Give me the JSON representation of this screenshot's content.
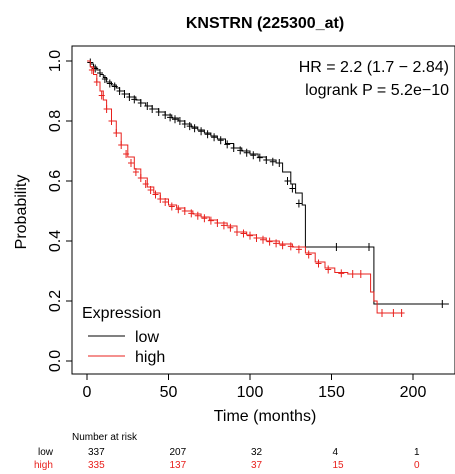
{
  "chart_data": {
    "type": "line",
    "subtype": "kaplan-meier",
    "title": "KNSTRN (225300_at)",
    "xlabel": "Time (months)",
    "ylabel": "Probability",
    "xlim": [
      0,
      222
    ],
    "ylim": [
      0,
      1
    ],
    "xticks": [
      0,
      50,
      100,
      150,
      200
    ],
    "yticks": [
      0.0,
      0.2,
      0.4,
      0.6,
      0.8,
      1.0
    ],
    "xtick_labels": [
      "0",
      "50",
      "100",
      "150",
      "200"
    ],
    "ytick_labels": [
      "0.0",
      "0.2",
      "0.4",
      "0.6",
      "0.8",
      "1.0"
    ],
    "annotations": [
      "HR = 2.2 (1.7 − 2.84)",
      "logrank P = 5.2e−10"
    ],
    "legend": {
      "title": "Expression",
      "position": "bottom-left",
      "entries": [
        {
          "label": "low",
          "color": "#000000"
        },
        {
          "label": "high",
          "color": "#e8201c"
        }
      ]
    },
    "series": [
      {
        "name": "low",
        "color": "#000000",
        "points": [
          [
            0,
            1.0
          ],
          [
            2,
            0.99
          ],
          [
            4,
            0.98
          ],
          [
            6,
            0.97
          ],
          [
            8,
            0.955
          ],
          [
            10,
            0.945
          ],
          [
            12,
            0.93
          ],
          [
            15,
            0.92
          ],
          [
            18,
            0.91
          ],
          [
            20,
            0.9
          ],
          [
            23,
            0.89
          ],
          [
            26,
            0.88
          ],
          [
            30,
            0.87
          ],
          [
            33,
            0.86
          ],
          [
            36,
            0.85
          ],
          [
            40,
            0.84
          ],
          [
            44,
            0.83
          ],
          [
            48,
            0.82
          ],
          [
            52,
            0.81
          ],
          [
            56,
            0.8
          ],
          [
            60,
            0.79
          ],
          [
            64,
            0.78
          ],
          [
            68,
            0.77
          ],
          [
            72,
            0.76
          ],
          [
            76,
            0.75
          ],
          [
            80,
            0.74
          ],
          [
            85,
            0.725
          ],
          [
            90,
            0.71
          ],
          [
            95,
            0.7
          ],
          [
            100,
            0.69
          ],
          [
            105,
            0.68
          ],
          [
            110,
            0.67
          ],
          [
            116,
            0.66
          ],
          [
            120,
            0.63
          ],
          [
            125,
            0.59
          ],
          [
            128,
            0.56
          ],
          [
            132,
            0.52
          ],
          [
            134,
            0.38
          ],
          [
            170,
            0.38
          ],
          [
            175,
            0.38
          ],
          [
            176,
            0.19
          ],
          [
            222,
            0.19
          ]
        ],
        "censors": [
          [
            2,
            0.995
          ],
          [
            5,
            0.975
          ],
          [
            8,
            0.96
          ],
          [
            11,
            0.94
          ],
          [
            14,
            0.925
          ],
          [
            17,
            0.915
          ],
          [
            20,
            0.9
          ],
          [
            23,
            0.89
          ],
          [
            26,
            0.88
          ],
          [
            29,
            0.872
          ],
          [
            33,
            0.86
          ],
          [
            37,
            0.85
          ],
          [
            40,
            0.84
          ],
          [
            44,
            0.83
          ],
          [
            48,
            0.82
          ],
          [
            51,
            0.812
          ],
          [
            54,
            0.806
          ],
          [
            57,
            0.8
          ],
          [
            60,
            0.79
          ],
          [
            63,
            0.783
          ],
          [
            66,
            0.776
          ],
          [
            70,
            0.766
          ],
          [
            74,
            0.756
          ],
          [
            78,
            0.746
          ],
          [
            82,
            0.736
          ],
          [
            86,
            0.722
          ],
          [
            90,
            0.71
          ],
          [
            94,
            0.702
          ],
          [
            98,
            0.694
          ],
          [
            102,
            0.686
          ],
          [
            106,
            0.678
          ],
          [
            110,
            0.67
          ],
          [
            114,
            0.664
          ],
          [
            118,
            0.66
          ],
          [
            123,
            0.6
          ],
          [
            126,
            0.575
          ],
          [
            130,
            0.525
          ],
          [
            153,
            0.38
          ],
          [
            173,
            0.38
          ],
          [
            218,
            0.19
          ]
        ],
        "at_risk": [
          337,
          207,
          32,
          4,
          1
        ]
      },
      {
        "name": "high",
        "color": "#e8201c",
        "points": [
          [
            0,
            1.0
          ],
          [
            2,
            0.98
          ],
          [
            4,
            0.955
          ],
          [
            6,
            0.93
          ],
          [
            8,
            0.9
          ],
          [
            10,
            0.87
          ],
          [
            12,
            0.84
          ],
          [
            15,
            0.8
          ],
          [
            18,
            0.76
          ],
          [
            21,
            0.72
          ],
          [
            25,
            0.68
          ],
          [
            29,
            0.64
          ],
          [
            33,
            0.61
          ],
          [
            37,
            0.58
          ],
          [
            41,
            0.56
          ],
          [
            45,
            0.54
          ],
          [
            50,
            0.52
          ],
          [
            55,
            0.51
          ],
          [
            60,
            0.5
          ],
          [
            65,
            0.49
          ],
          [
            70,
            0.48
          ],
          [
            75,
            0.47
          ],
          [
            80,
            0.46
          ],
          [
            86,
            0.45
          ],
          [
            92,
            0.43
          ],
          [
            98,
            0.42
          ],
          [
            104,
            0.41
          ],
          [
            110,
            0.4
          ],
          [
            118,
            0.39
          ],
          [
            126,
            0.38
          ],
          [
            134,
            0.36
          ],
          [
            140,
            0.33
          ],
          [
            146,
            0.31
          ],
          [
            152,
            0.295
          ],
          [
            160,
            0.29
          ],
          [
            170,
            0.29
          ],
          [
            174,
            0.23
          ],
          [
            176,
            0.2
          ],
          [
            178,
            0.16
          ],
          [
            194,
            0.16
          ]
        ],
        "censors": [
          [
            3,
            0.97
          ],
          [
            6,
            0.93
          ],
          [
            9,
            0.885
          ],
          [
            12,
            0.84
          ],
          [
            15,
            0.8
          ],
          [
            18,
            0.76
          ],
          [
            21,
            0.72
          ],
          [
            24,
            0.69
          ],
          [
            27,
            0.66
          ],
          [
            30,
            0.63
          ],
          [
            33,
            0.61
          ],
          [
            36,
            0.59
          ],
          [
            39,
            0.57
          ],
          [
            42,
            0.555
          ],
          [
            45,
            0.54
          ],
          [
            48,
            0.53
          ],
          [
            52,
            0.515
          ],
          [
            56,
            0.506
          ],
          [
            60,
            0.5
          ],
          [
            64,
            0.492
          ],
          [
            68,
            0.484
          ],
          [
            72,
            0.476
          ],
          [
            76,
            0.468
          ],
          [
            80,
            0.46
          ],
          [
            84,
            0.452
          ],
          [
            88,
            0.444
          ],
          [
            92,
            0.43
          ],
          [
            96,
            0.425
          ],
          [
            100,
            0.418
          ],
          [
            104,
            0.41
          ],
          [
            108,
            0.404
          ],
          [
            112,
            0.398
          ],
          [
            116,
            0.392
          ],
          [
            120,
            0.386
          ],
          [
            125,
            0.382
          ],
          [
            130,
            0.372
          ],
          [
            136,
            0.355
          ],
          [
            142,
            0.325
          ],
          [
            148,
            0.305
          ],
          [
            156,
            0.292
          ],
          [
            163,
            0.29
          ],
          [
            168,
            0.29
          ],
          [
            181,
            0.16
          ],
          [
            188,
            0.16
          ],
          [
            193,
            0.16
          ]
        ],
        "at_risk": [
          335,
          137,
          37,
          15,
          0
        ]
      }
    ]
  },
  "risk_table": {
    "header": "Number at risk",
    "times": [
      0,
      50,
      100,
      150,
      200
    ]
  }
}
